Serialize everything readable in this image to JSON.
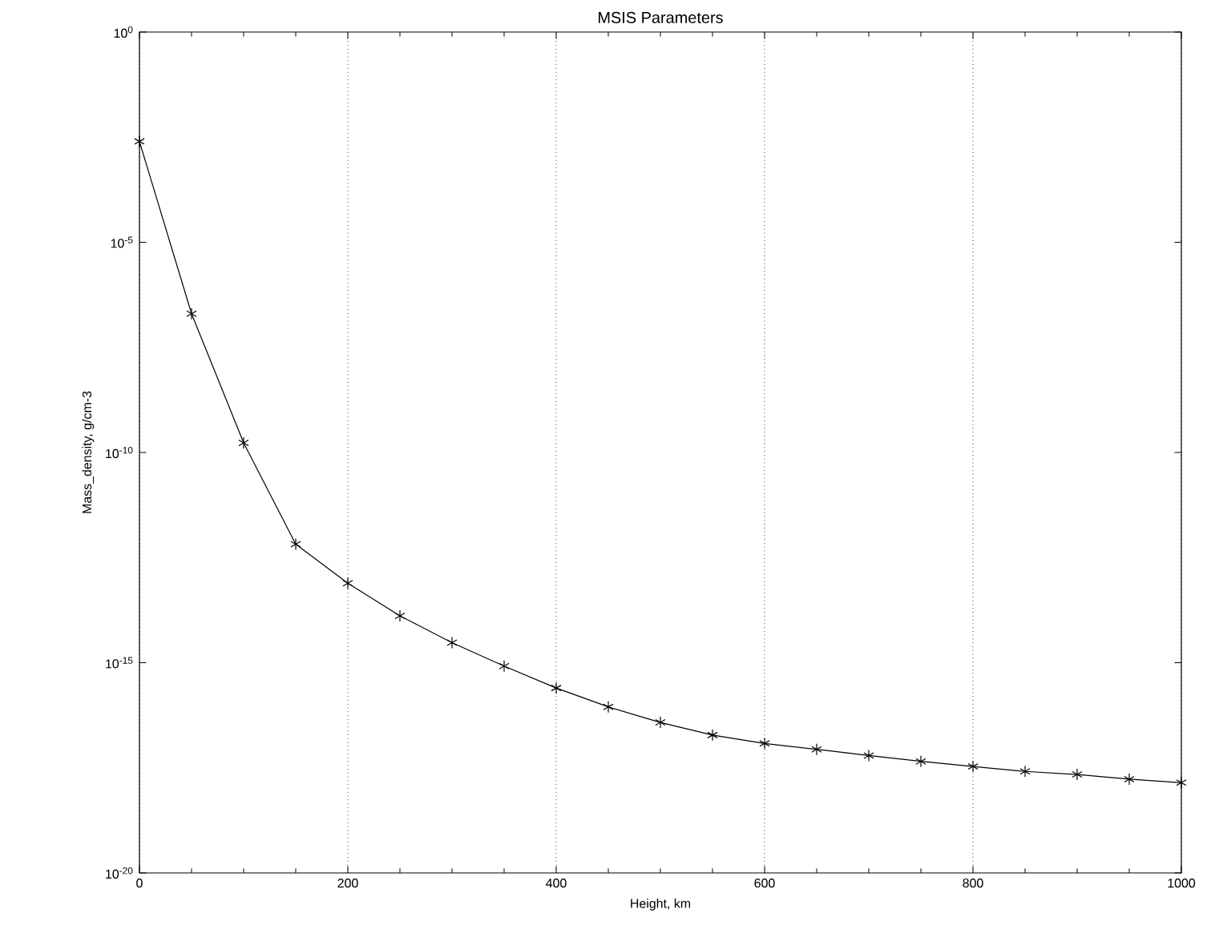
{
  "chart_data": {
    "type": "line",
    "title": "MSIS Parameters",
    "xlabel": "Height, km",
    "ylabel": "Mass_density, g/cm-3",
    "x": [
      0,
      50,
      100,
      150,
      200,
      250,
      300,
      350,
      400,
      450,
      500,
      550,
      600,
      650,
      700,
      750,
      800,
      850,
      900,
      950,
      1000
    ],
    "series": [
      {
        "color": "#000000",
        "values": [
          0.0025,
          2e-07,
          1.7e-10,
          6.6e-13,
          7.8e-14,
          1.3e-14,
          3e-15,
          8.3e-16,
          2.5e-16,
          8.9e-17,
          3.8e-17,
          1.9e-17,
          1.2e-17,
          8.7e-18,
          6.2e-18,
          4.5e-18,
          3.4e-18,
          2.6e-18,
          2.2e-18,
          1.7e-18,
          1.4e-18
        ]
      }
    ],
    "log": "y",
    "xlim": [
      0,
      1000
    ],
    "ylim": [
      1e-20,
      1
    ],
    "xticks": [
      0,
      200,
      400,
      600,
      800,
      1000
    ],
    "yticks": [
      {
        "value": 1e-20,
        "label": "10$^{-20}$"
      },
      {
        "value": 1e-15,
        "label": "10$^{-15}$"
      },
      {
        "value": 1e-10,
        "label": "10$^{-10}$"
      },
      {
        "value": 1e-05,
        "label": "10$^{-5}$"
      },
      {
        "value": 1,
        "label": "10$^{0}$"
      }
    ],
    "grid": "x",
    "marker": "cross",
    "line_style": "solid"
  }
}
